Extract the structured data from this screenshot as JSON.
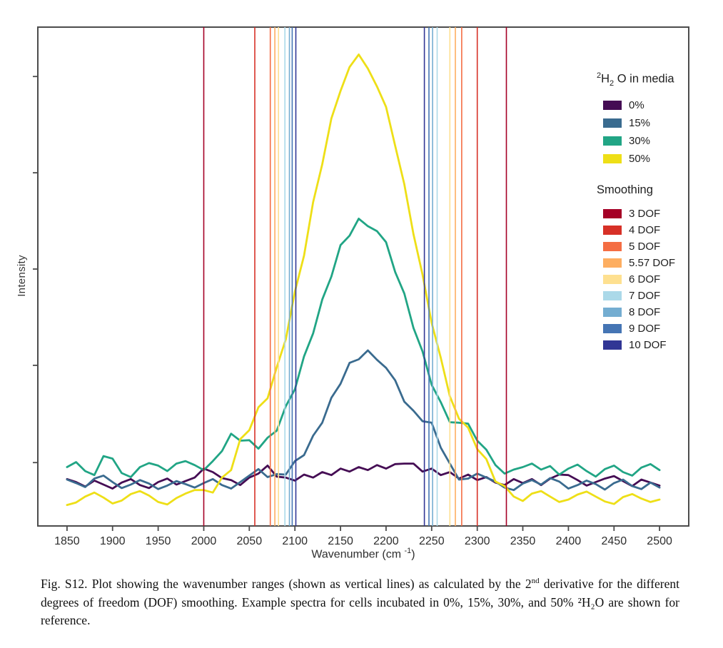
{
  "figure": {
    "y_axis_label": "Intensity",
    "x_axis_label_pre": "Wavenumber (cm ",
    "x_axis_label_sup": "-1",
    "x_axis_label_post": ")"
  },
  "legend": {
    "media_title_sup": "2",
    "media_title_h": "H",
    "media_title_sub": "2",
    "media_title_rest": " O in media",
    "smoothing_title": "Smoothing",
    "media_items": [
      {
        "label": "0%",
        "color": "#450d54"
      },
      {
        "label": "15%",
        "color": "#3a6b8f"
      },
      {
        "label": "30%",
        "color": "#21a585"
      },
      {
        "label": "50%",
        "color": "#eedf17"
      }
    ],
    "smoothing_items": [
      {
        "label": "3 DOF",
        "color": "#a50026"
      },
      {
        "label": "4 DOF",
        "color": "#d73027"
      },
      {
        "label": "5 DOF",
        "color": "#f46d43"
      },
      {
        "label": "5.57 DOF",
        "color": "#fdae61"
      },
      {
        "label": "6 DOF",
        "color": "#fee090"
      },
      {
        "label": "7 DOF",
        "color": "#abd9e9"
      },
      {
        "label": "8 DOF",
        "color": "#74add1"
      },
      {
        "label": "9 DOF",
        "color": "#4575b4"
      },
      {
        "label": "10 DOF",
        "color": "#313695"
      }
    ]
  },
  "caption": {
    "part1": "Fig. S12. Plot showing the wavenumber ranges (shown as vertical lines) as calculated by the 2",
    "sup": "nd",
    "part2": " derivative for the different degrees of freedom (DOF) smoothing. Example spectra for cells incubated in 0%, 15%, 30%, and 50% ²H₂O are shown for reference."
  },
  "chart_data": {
    "type": "line",
    "title": "",
    "xlabel": "Wavenumber (cm⁻¹)",
    "ylabel": "Intensity",
    "xlim": [
      1818,
      2532
    ],
    "ylim": [
      0,
      1
    ],
    "x_ticks": [
      1850,
      1900,
      1950,
      2000,
      2050,
      2100,
      2150,
      2200,
      2250,
      2300,
      2350,
      2400,
      2450,
      2500
    ],
    "y_ticks": [
      0.127,
      0.322,
      0.515,
      0.708,
      0.901
    ],
    "y_tick_labels_shown": false,
    "grid": false,
    "legend_position": "inside-top-right",
    "x_start": 1850,
    "x_step": 10,
    "series": [
      {
        "name": "0%",
        "color": "#450d54",
        "values": [
          0.094,
          0.088,
          0.079,
          0.091,
          0.083,
          0.075,
          0.087,
          0.094,
          0.082,
          0.076,
          0.088,
          0.095,
          0.083,
          0.09,
          0.097,
          0.115,
          0.108,
          0.096,
          0.092,
          0.082,
          0.097,
          0.105,
          0.121,
          0.099,
          0.097,
          0.091,
          0.103,
          0.097,
          0.108,
          0.102,
          0.115,
          0.109,
          0.118,
          0.112,
          0.122,
          0.115,
          0.124,
          0.125,
          0.125,
          0.109,
          0.115,
          0.102,
          0.108,
          0.095,
          0.103,
          0.092,
          0.098,
          0.087,
          0.082,
          0.094,
          0.086,
          0.094,
          0.082,
          0.095,
          0.103,
          0.102,
          0.092,
          0.081,
          0.088,
          0.095,
          0.1,
          0.09,
          0.08,
          0.093,
          0.087,
          0.081
        ]
      },
      {
        "name": "15%",
        "color": "#3a6b8f",
        "values": [
          0.093,
          0.086,
          0.078,
          0.095,
          0.101,
          0.088,
          0.076,
          0.083,
          0.092,
          0.085,
          0.074,
          0.081,
          0.09,
          0.084,
          0.077,
          0.086,
          0.094,
          0.082,
          0.075,
          0.088,
          0.101,
          0.114,
          0.098,
          0.104,
          0.103,
          0.13,
          0.142,
          0.181,
          0.207,
          0.257,
          0.285,
          0.327,
          0.334,
          0.352,
          0.333,
          0.317,
          0.292,
          0.249,
          0.231,
          0.21,
          0.207,
          0.157,
          0.125,
          0.093,
          0.095,
          0.105,
          0.097,
          0.089,
          0.077,
          0.072,
          0.085,
          0.092,
          0.083,
          0.096,
          0.089,
          0.075,
          0.082,
          0.091,
          0.084,
          0.073,
          0.086,
          0.093,
          0.08,
          0.074,
          0.087,
          0.077
        ]
      },
      {
        "name": "30%",
        "color": "#21a585",
        "values": [
          0.118,
          0.128,
          0.11,
          0.102,
          0.14,
          0.135,
          0.106,
          0.098,
          0.118,
          0.126,
          0.121,
          0.11,
          0.125,
          0.13,
          0.122,
          0.112,
          0.13,
          0.15,
          0.185,
          0.171,
          0.172,
          0.155,
          0.177,
          0.191,
          0.24,
          0.274,
          0.34,
          0.386,
          0.454,
          0.5,
          0.563,
          0.582,
          0.616,
          0.601,
          0.591,
          0.569,
          0.509,
          0.466,
          0.397,
          0.35,
          0.283,
          0.248,
          0.208,
          0.207,
          0.205,
          0.171,
          0.153,
          0.122,
          0.105,
          0.113,
          0.118,
          0.125,
          0.113,
          0.12,
          0.103,
          0.115,
          0.123,
          0.11,
          0.099,
          0.114,
          0.121,
          0.108,
          0.101,
          0.117,
          0.124,
          0.112
        ]
      },
      {
        "name": "50%",
        "color": "#eedf17",
        "values": [
          0.042,
          0.047,
          0.059,
          0.067,
          0.057,
          0.045,
          0.051,
          0.064,
          0.07,
          0.061,
          0.048,
          0.043,
          0.056,
          0.065,
          0.072,
          0.072,
          0.067,
          0.097,
          0.112,
          0.174,
          0.192,
          0.238,
          0.256,
          0.318,
          0.374,
          0.47,
          0.542,
          0.649,
          0.725,
          0.817,
          0.872,
          0.92,
          0.945,
          0.917,
          0.881,
          0.84,
          0.762,
          0.685,
          0.585,
          0.504,
          0.407,
          0.337,
          0.26,
          0.215,
          0.197,
          0.154,
          0.134,
          0.089,
          0.08,
          0.059,
          0.05,
          0.065,
          0.07,
          0.059,
          0.048,
          0.053,
          0.063,
          0.069,
          0.059,
          0.049,
          0.044,
          0.058,
          0.064,
          0.055,
          0.048,
          0.053
        ]
      }
    ],
    "dof_ranges": [
      {
        "name": "3 DOF",
        "color": "#a50026",
        "range": [
          2000,
          2332
        ]
      },
      {
        "name": "4 DOF",
        "color": "#d73027",
        "range": [
          2056,
          2300
        ]
      },
      {
        "name": "5 DOF",
        "color": "#f46d43",
        "range": [
          2073,
          2283
        ]
      },
      {
        "name": "5.57 DOF",
        "color": "#fdae61",
        "range": [
          2078,
          2276
        ]
      },
      {
        "name": "6 DOF",
        "color": "#fee090",
        "range": [
          2082,
          2270
        ]
      },
      {
        "name": "7 DOF",
        "color": "#abd9e9",
        "range": [
          2089,
          2256
        ]
      },
      {
        "name": "8 DOF",
        "color": "#74add1",
        "range": [
          2094,
          2251
        ]
      },
      {
        "name": "9 DOF",
        "color": "#4575b4",
        "range": [
          2097,
          2247
        ]
      },
      {
        "name": "10 DOF",
        "color": "#313695",
        "range": [
          2101,
          2242
        ]
      }
    ]
  }
}
